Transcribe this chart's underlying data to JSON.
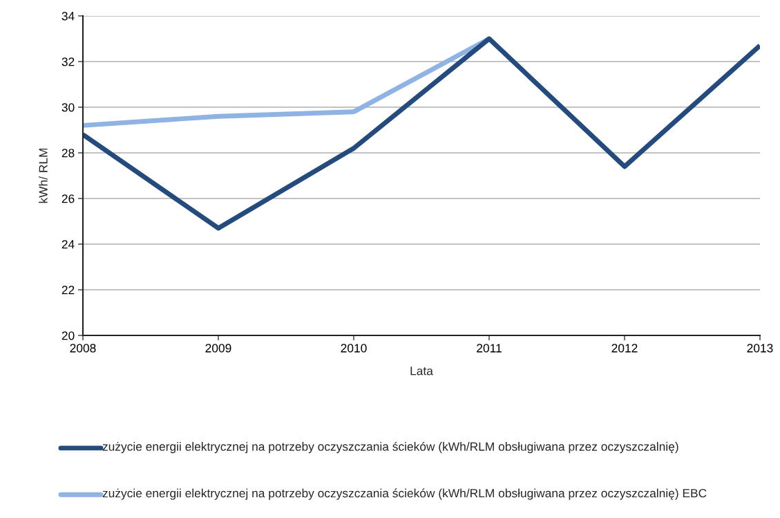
{
  "chart_data": {
    "type": "line",
    "xlabel": "Lata",
    "ylabel": "kWh/ RLM",
    "categories": [
      "2008",
      "2009",
      "2010",
      "2011",
      "2012",
      "2013"
    ],
    "series": [
      {
        "name": "zużycie energii elektrycznej na potrzeby oczyszczania ścieków (kWh/RLM obsługiwana przez oczyszczalnię)",
        "color": "#254a7c",
        "values": [
          28.8,
          24.7,
          28.2,
          33.0,
          27.4,
          32.7
        ]
      },
      {
        "name": "zużycie energii elektrycznej na potrzeby oczyszczania ścieków (kWh/RLM obsługiwana przez oczyszczalnię) EBC",
        "color": "#8fb4e3",
        "values": [
          29.2,
          29.6,
          29.8,
          33.0,
          null,
          null
        ]
      }
    ],
    "ylim": [
      20,
      34
    ],
    "yticks": [
      20,
      22,
      24,
      26,
      28,
      30,
      32,
      34
    ],
    "grid": "y",
    "legend": "bottom"
  }
}
